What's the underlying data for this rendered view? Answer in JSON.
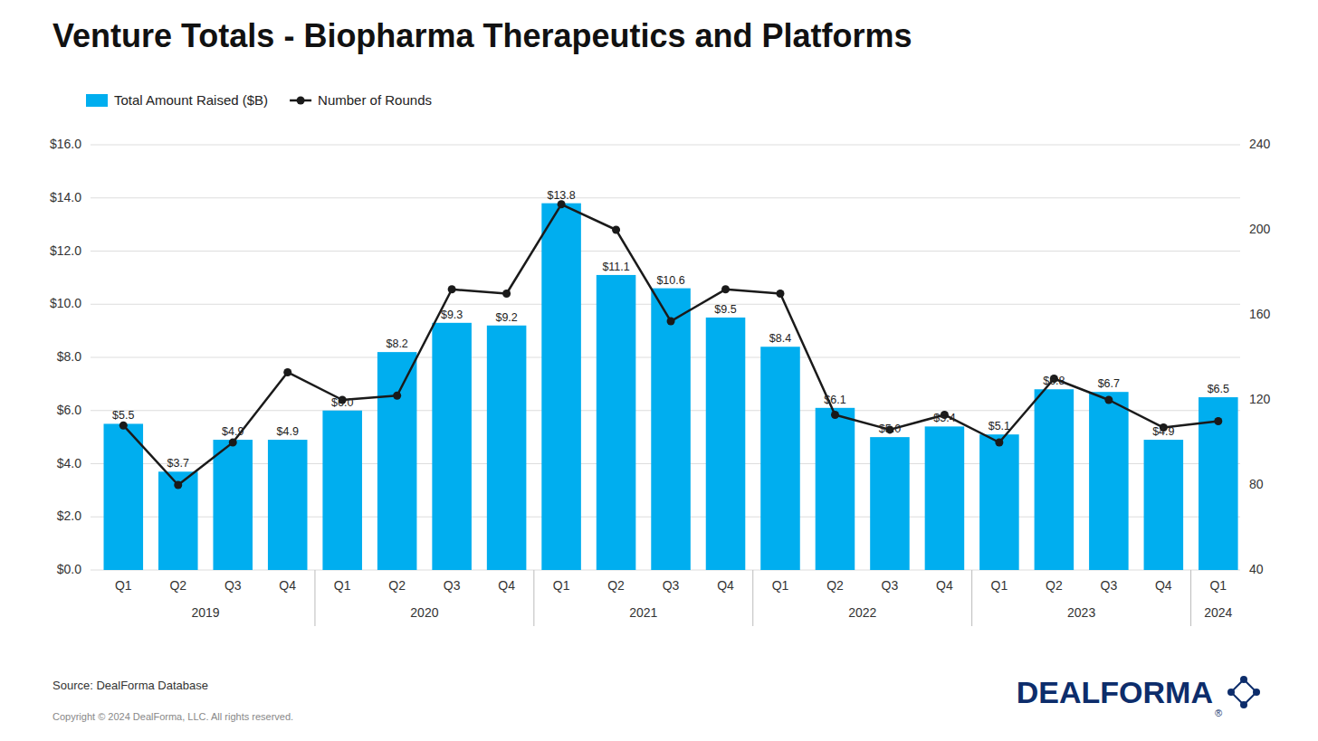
{
  "chart_data": {
    "type": "bar",
    "title": "Venture Totals - Biopharma Therapeutics and Platforms",
    "categories": [
      "Q1",
      "Q2",
      "Q3",
      "Q4",
      "Q1",
      "Q2",
      "Q3",
      "Q4",
      "Q1",
      "Q2",
      "Q3",
      "Q4",
      "Q1",
      "Q2",
      "Q3",
      "Q4",
      "Q1",
      "Q2",
      "Q3",
      "Q4",
      "Q1"
    ],
    "series": [
      {
        "name": "Total Amount Raised ($B)",
        "type": "bar",
        "color": "#00AEEF",
        "values": [
          5.5,
          3.7,
          4.9,
          4.9,
          6.0,
          8.2,
          9.3,
          9.2,
          13.8,
          11.1,
          10.6,
          9.5,
          8.4,
          6.1,
          5.0,
          5.4,
          5.1,
          6.8,
          6.7,
          4.9,
          6.5
        ],
        "value_labels": [
          "$5.5",
          "$3.7",
          "$4.9",
          "$4.9",
          "$6.0",
          "$8.2",
          "$9.3",
          "$9.2",
          "$13.8",
          "$11.1",
          "$10.6",
          "$9.5",
          "$8.4",
          "$6.1",
          "$5.0",
          "$5.4",
          "$5.1",
          "$6.8",
          "$6.7",
          "$4.9",
          "$6.5"
        ]
      },
      {
        "name": "Number of Rounds",
        "type": "line",
        "color": "#1a1a1a",
        "axis": "y2",
        "marker": "circle",
        "values": [
          108,
          80,
          100,
          133,
          120,
          122,
          172,
          170,
          212,
          200,
          157,
          172,
          170,
          113,
          106,
          113,
          100,
          130,
          120,
          107,
          110
        ]
      }
    ],
    "data_labels": true,
    "ylim": [
      0,
      16
    ],
    "yticks": [
      {
        "value": 0,
        "label": "$0.0"
      },
      {
        "value": 2,
        "label": "$2.0"
      },
      {
        "value": 4,
        "label": "$4.0"
      },
      {
        "value": 6,
        "label": "$6.0"
      },
      {
        "value": 8,
        "label": "$8.0"
      },
      {
        "value": 10,
        "label": "$10.0"
      },
      {
        "value": 12,
        "label": "$12.0"
      },
      {
        "value": 14,
        "label": "$14.0"
      },
      {
        "value": 16,
        "label": "$16.0"
      }
    ],
    "y2lim": [
      40,
      240
    ],
    "y2ticks": [
      40,
      80,
      120,
      160,
      200,
      240
    ],
    "grid": true,
    "legend": "upper left",
    "annotations": [
      {
        "text": "2019",
        "x": 1.5
      },
      {
        "text": "2020",
        "x": 5.5
      },
      {
        "text": "2021",
        "x": 9.5
      },
      {
        "text": "2022",
        "x": 13.5
      },
      {
        "text": "2023",
        "x": 17.5
      },
      {
        "text": "2024",
        "x": 20.0
      }
    ],
    "separators": [
      3.5,
      7.5,
      11.5,
      15.5,
      19.5
    ],
    "source": "Source: DealForma Database",
    "copyright": "Copyright © 2024 DealForma, LLC. All rights reserved.",
    "logo": "DEALFORMA",
    "logo_mark": "®"
  }
}
